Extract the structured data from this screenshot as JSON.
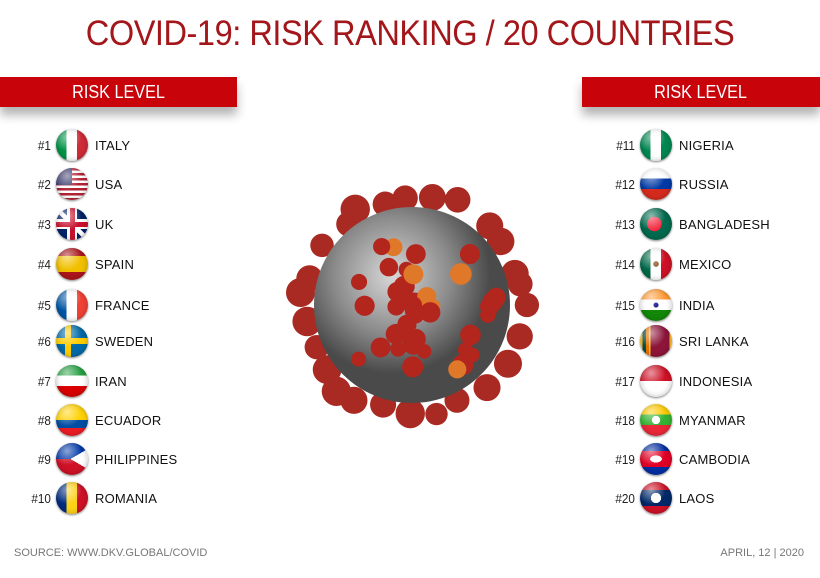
{
  "title": "COVID-19: RISK RANKING / 20 COUNTRIES",
  "left_header": "RISK LEVEL",
  "right_header": "RISK LEVEL",
  "left": [
    {
      "rank": "#1",
      "name": "ITALY",
      "flag": "italy"
    },
    {
      "rank": "#2",
      "name": "USA",
      "flag": "usa"
    },
    {
      "rank": "#3",
      "name": "UK",
      "flag": "uk"
    },
    {
      "rank": "#4",
      "name": "SPAIN",
      "flag": "spain"
    },
    {
      "rank": "#5",
      "name": "FRANCE",
      "flag": "france"
    },
    {
      "rank": "#6",
      "name": "SWEDEN",
      "flag": "sweden"
    },
    {
      "rank": "#7",
      "name": "IRAN",
      "flag": "iran"
    },
    {
      "rank": "#8",
      "name": "ECUADOR",
      "flag": "ecuador"
    },
    {
      "rank": "#9",
      "name": "PHILIPPINES",
      "flag": "philippines"
    },
    {
      "rank": "#10",
      "name": "ROMANIA",
      "flag": "romania"
    }
  ],
  "right": [
    {
      "rank": "#11",
      "name": "NIGERIA",
      "flag": "nigeria"
    },
    {
      "rank": "#12",
      "name": "RUSSIA",
      "flag": "russia"
    },
    {
      "rank": "#13",
      "name": "BANGLADESH",
      "flag": "bangladesh"
    },
    {
      "rank": "#14",
      "name": "MEXICO",
      "flag": "mexico"
    },
    {
      "rank": "#15",
      "name": "INDIA",
      "flag": "india"
    },
    {
      "rank": "#16",
      "name": "SRI LANKA",
      "flag": "srilanka"
    },
    {
      "rank": "#17",
      "name": "INDONESIA",
      "flag": "indonesia"
    },
    {
      "rank": "#18",
      "name": "MYANMAR",
      "flag": "myanmar"
    },
    {
      "rank": "#19",
      "name": "CAMBODIA",
      "flag": "cambodia"
    },
    {
      "rank": "#20",
      "name": "LAOS",
      "flag": "laos"
    }
  ],
  "source": "SOURCE: WWW.DKV.GLOBAL/COVID",
  "date": "APRIL, 12 | 2020",
  "colors": {
    "title": "#a3161a",
    "header_bar": "#c8040a",
    "virus_spike": "#b3261e",
    "virus_body": "#8a8a8a"
  }
}
